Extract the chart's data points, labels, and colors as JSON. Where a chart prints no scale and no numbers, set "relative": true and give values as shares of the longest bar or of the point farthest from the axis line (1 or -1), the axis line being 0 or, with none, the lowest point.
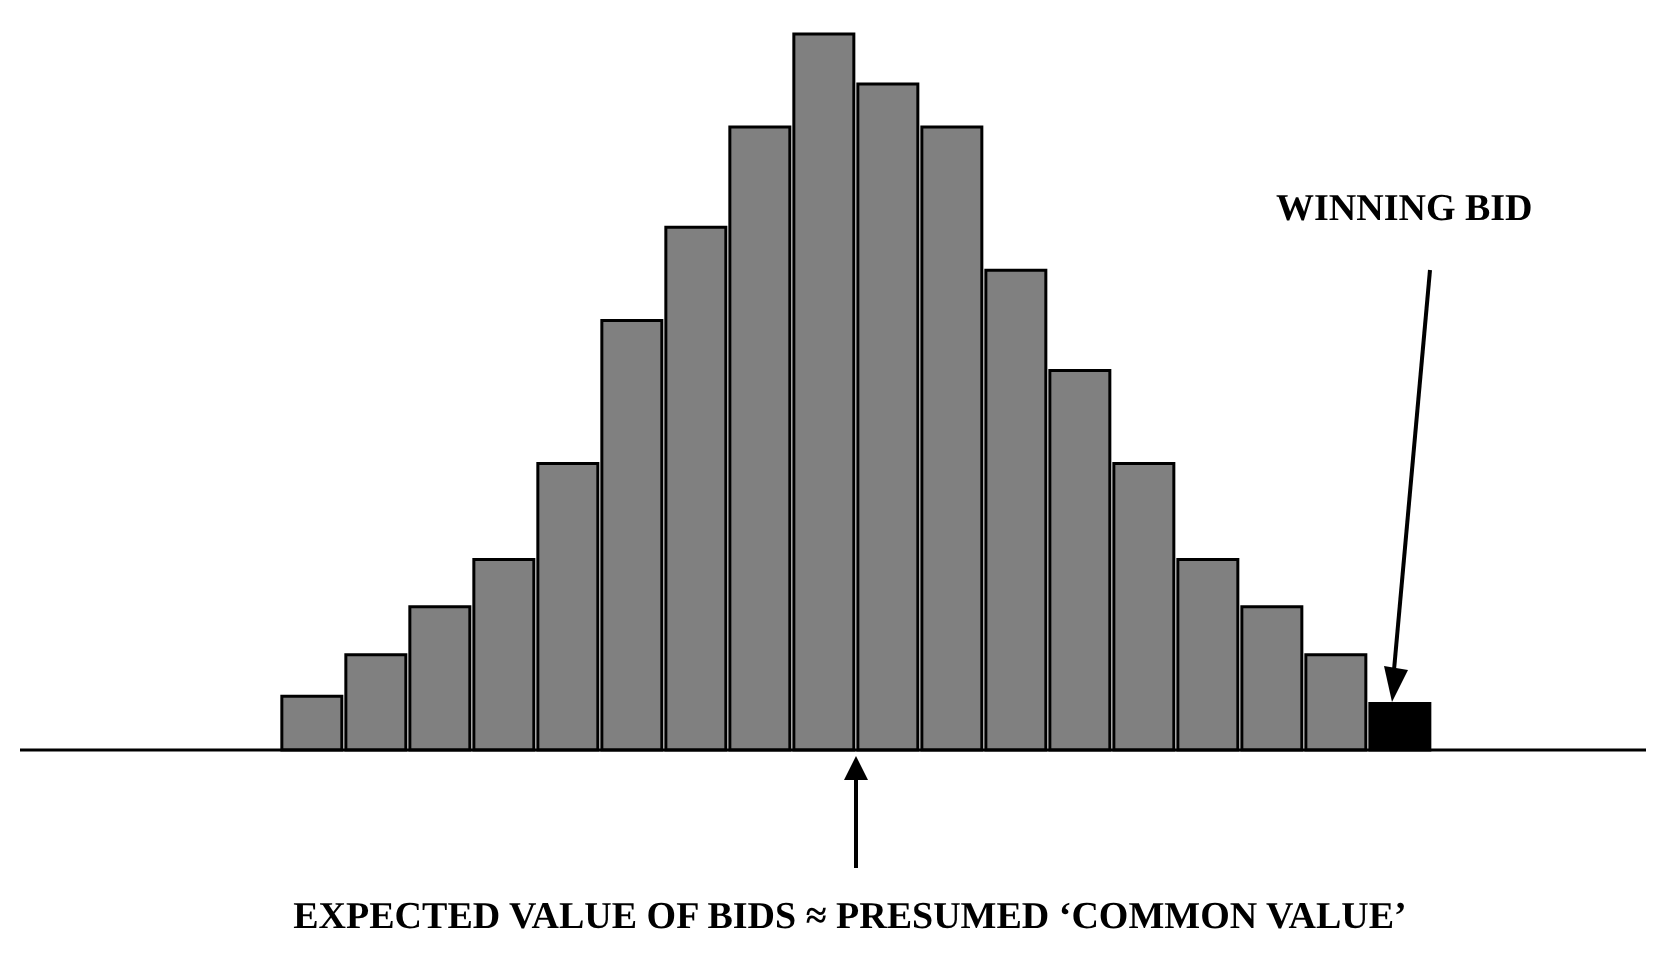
{
  "chart_data": {
    "type": "bar",
    "relative": true,
    "categories": [
      null,
      null,
      null,
      null,
      null,
      null,
      null,
      null,
      null,
      null,
      null,
      null,
      null,
      null,
      null,
      null,
      null,
      null
    ],
    "values": [
      0.075,
      0.133,
      0.2,
      0.266,
      0.4,
      0.6,
      0.73,
      0.87,
      1,
      0.93,
      0.87,
      0.67,
      0.53,
      0.4,
      0.266,
      0.2,
      0.133,
      0.065
    ],
    "colors": [
      "#808080",
      "#808080",
      "#808080",
      "#808080",
      "#808080",
      "#808080",
      "#808080",
      "#808080",
      "#808080",
      "#808080",
      "#808080",
      "#808080",
      "#808080",
      "#808080",
      "#808080",
      "#808080",
      "#808080",
      "#000000"
    ],
    "annotations": [
      "WINNING BID",
      "EXPECTED VALUE OF BIDS ≈ PRESUMED ‘COMMON VALUE’"
    ]
  }
}
